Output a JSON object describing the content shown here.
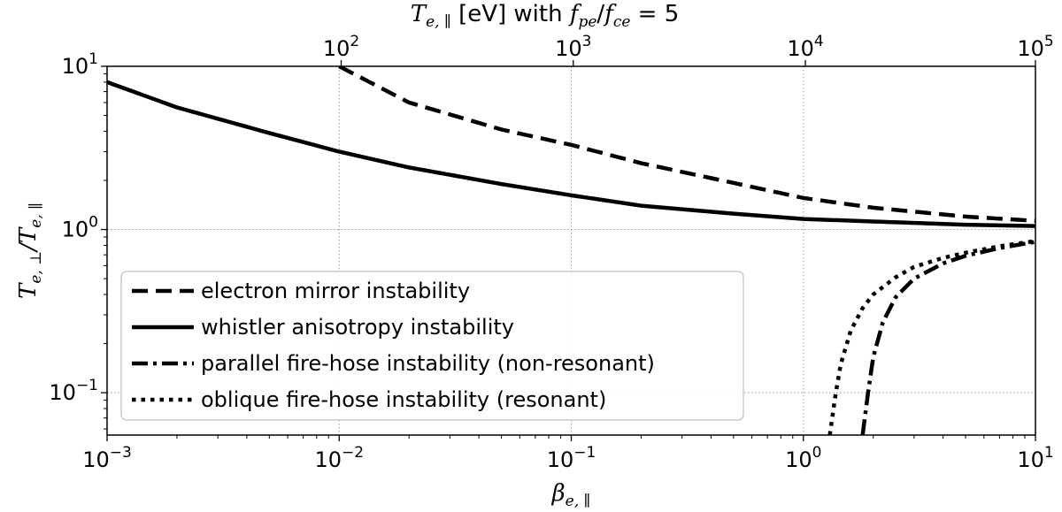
{
  "chart_data": {
    "type": "line",
    "scale": {
      "x": "log",
      "y": "log"
    },
    "xlim": [
      0.001,
      10
    ],
    "ylim": [
      0.055,
      10
    ],
    "grid": true,
    "grid_style": "dotted",
    "xlabel": {
      "symbol": "β",
      "sub": "e, ∥"
    },
    "ylabel": {
      "num": "T",
      "num_sub": "e, ⊥",
      "slash": "/",
      "den": "T",
      "den_sub": "e, ∥"
    },
    "top_axis": {
      "label": {
        "symbol": "T",
        "sub": "e, ∥",
        "unit": "[eV] with ",
        "ratio_num": "f",
        "ratio_num_sub": "pe",
        "ratio_slash": "/",
        "ratio_den": "f",
        "ratio_den_sub": "ce",
        "equals": " = 5"
      },
      "ticks": [
        {
          "base": "10",
          "exp": "2",
          "beta": 0.0102
        },
        {
          "base": "10",
          "exp": "3",
          "beta": 0.102
        },
        {
          "base": "10",
          "exp": "4",
          "beta": 1.02
        },
        {
          "base": "10",
          "exp": "5",
          "beta": 10
        }
      ]
    },
    "x_ticks": [
      {
        "base": "10",
        "exp": "−3",
        "value": 0.001
      },
      {
        "base": "10",
        "exp": "−2",
        "value": 0.01
      },
      {
        "base": "10",
        "exp": "−1",
        "value": 0.1
      },
      {
        "base": "10",
        "exp": "0",
        "value": 1
      },
      {
        "base": "10",
        "exp": "1",
        "value": 10
      }
    ],
    "y_ticks": [
      {
        "base": "10",
        "exp": "−1",
        "value": 0.1
      },
      {
        "base": "10",
        "exp": "0",
        "value": 1
      },
      {
        "base": "10",
        "exp": "1",
        "value": 10
      }
    ],
    "legend_position": "lower-left",
    "series": [
      {
        "name": "electron mirror instability",
        "dash": "dashed",
        "x": [
          0.01,
          0.02,
          0.05,
          0.1,
          0.2,
          0.5,
          1,
          2,
          5,
          10
        ],
        "y": [
          10.0,
          6.0,
          4.1,
          3.3,
          2.55,
          1.93,
          1.56,
          1.36,
          1.2,
          1.13
        ]
      },
      {
        "name": "whistler anisotropy instability",
        "dash": "solid",
        "x": [
          0.001,
          0.002,
          0.005,
          0.01,
          0.02,
          0.05,
          0.1,
          0.2,
          0.5,
          1,
          2,
          5,
          10
        ],
        "y": [
          8.0,
          5.6,
          3.9,
          3.0,
          2.4,
          1.9,
          1.62,
          1.4,
          1.25,
          1.16,
          1.12,
          1.07,
          1.05
        ]
      },
      {
        "name": "parallel fire-hose instability (non-resonant)",
        "dash": "dashdot",
        "x": [
          1.8,
          1.9,
          2.0,
          2.2,
          2.5,
          3.0,
          4.0,
          5.0,
          7.0,
          10
        ],
        "y": [
          0.055,
          0.1,
          0.165,
          0.27,
          0.385,
          0.5,
          0.62,
          0.69,
          0.77,
          0.84
        ]
      },
      {
        "name": "oblique fire-hose instability (resonant)",
        "dash": "dotted",
        "x": [
          1.3,
          1.38,
          1.45,
          1.6,
          1.8,
          2.0,
          2.5,
          3.0,
          4.0,
          5.0,
          7.0,
          10
        ],
        "y": [
          0.055,
          0.1,
          0.15,
          0.24,
          0.33,
          0.4,
          0.51,
          0.59,
          0.67,
          0.72,
          0.79,
          0.85
        ]
      }
    ]
  }
}
